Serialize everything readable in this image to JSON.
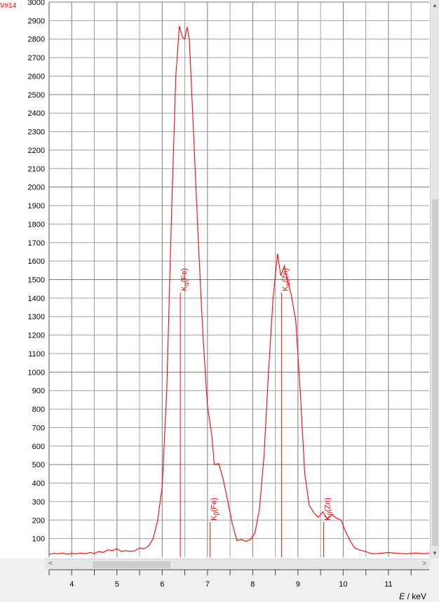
{
  "series_tag": "V#14",
  "xaxis": {
    "symbol": "E",
    "unit": "/ keV"
  },
  "chart_data": {
    "type": "line",
    "xlabel": "E / keV",
    "ylabel": "",
    "xlim": [
      3.5,
      11.9
    ],
    "ylim": [
      0,
      3000
    ],
    "grid": true,
    "x_ticks": [
      4,
      5,
      6,
      7,
      8,
      9,
      10,
      11
    ],
    "y_ticks": [
      100,
      200,
      300,
      400,
      500,
      600,
      700,
      800,
      900,
      1000,
      1100,
      1200,
      1300,
      1400,
      1500,
      1600,
      1700,
      1800,
      1900,
      2000,
      2100,
      2200,
      2300,
      2400,
      2500,
      2600,
      2700,
      2800,
      2900,
      3000
    ],
    "series": [
      {
        "color": "#ff0000",
        "points": [
          [
            3.5,
            15
          ],
          [
            3.6,
            20
          ],
          [
            3.7,
            18
          ],
          [
            3.8,
            22
          ],
          [
            3.9,
            15
          ],
          [
            4.0,
            20
          ],
          [
            4.1,
            18
          ],
          [
            4.2,
            22
          ],
          [
            4.3,
            18
          ],
          [
            4.4,
            25
          ],
          [
            4.5,
            20
          ],
          [
            4.6,
            30
          ],
          [
            4.7,
            25
          ],
          [
            4.8,
            40
          ],
          [
            4.9,
            35
          ],
          [
            5.0,
            45
          ],
          [
            5.1,
            30
          ],
          [
            5.2,
            35
          ],
          [
            5.3,
            30
          ],
          [
            5.4,
            35
          ],
          [
            5.5,
            50
          ],
          [
            5.6,
            45
          ],
          [
            5.7,
            60
          ],
          [
            5.8,
            100
          ],
          [
            5.9,
            200
          ],
          [
            6.0,
            380
          ],
          [
            6.1,
            900
          ],
          [
            6.2,
            1800
          ],
          [
            6.3,
            2600
          ],
          [
            6.38,
            2870
          ],
          [
            6.45,
            2810
          ],
          [
            6.5,
            2800
          ],
          [
            6.55,
            2865
          ],
          [
            6.6,
            2800
          ],
          [
            6.7,
            2250
          ],
          [
            6.8,
            1700
          ],
          [
            6.9,
            1200
          ],
          [
            7.0,
            820
          ],
          [
            7.1,
            650
          ],
          [
            7.15,
            500
          ],
          [
            7.25,
            505
          ],
          [
            7.35,
            420
          ],
          [
            7.45,
            300
          ],
          [
            7.55,
            180
          ],
          [
            7.65,
            90
          ],
          [
            7.75,
            95
          ],
          [
            7.85,
            85
          ],
          [
            7.95,
            95
          ],
          [
            8.05,
            130
          ],
          [
            8.15,
            260
          ],
          [
            8.25,
            550
          ],
          [
            8.35,
            1000
          ],
          [
            8.45,
            1400
          ],
          [
            8.55,
            1640
          ],
          [
            8.62,
            1520
          ],
          [
            8.7,
            1575
          ],
          [
            8.75,
            1510
          ],
          [
            8.85,
            1420
          ],
          [
            8.95,
            1280
          ],
          [
            9.05,
            900
          ],
          [
            9.15,
            450
          ],
          [
            9.25,
            280
          ],
          [
            9.35,
            240
          ],
          [
            9.45,
            215
          ],
          [
            9.55,
            245
          ],
          [
            9.65,
            205
          ],
          [
            9.75,
            230
          ],
          [
            9.85,
            210
          ],
          [
            9.95,
            200
          ],
          [
            10.05,
            140
          ],
          [
            10.15,
            90
          ],
          [
            10.25,
            50
          ],
          [
            10.35,
            40
          ],
          [
            10.5,
            30
          ],
          [
            10.6,
            20
          ],
          [
            10.7,
            18
          ],
          [
            10.8,
            20
          ],
          [
            10.9,
            22
          ],
          [
            11.0,
            25
          ],
          [
            11.2,
            20
          ],
          [
            11.4,
            18
          ],
          [
            11.6,
            22
          ],
          [
            11.8,
            18
          ],
          [
            11.9,
            22
          ]
        ]
      }
    ],
    "peak_markers": [
      {
        "x": 6.4,
        "height": 1430,
        "line": "K",
        "sub": "α",
        "element": "(Fe)"
      },
      {
        "x": 7.06,
        "height": 190,
        "line": "K",
        "sub": "β",
        "element": "(Fe)"
      },
      {
        "x": 8.64,
        "height": 1430,
        "line": "K",
        "sub": "α",
        "element": "(Zn)"
      },
      {
        "x": 9.57,
        "height": 190,
        "line": "K",
        "sub": "β",
        "element": "(Zn)"
      }
    ]
  }
}
